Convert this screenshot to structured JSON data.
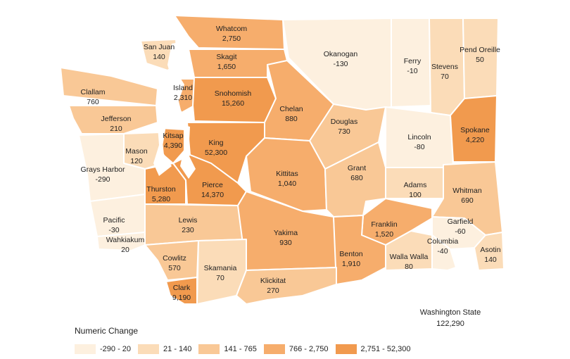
{
  "colors": {
    "class1": "#fdf0df",
    "class2": "#fbdcb8",
    "class3": "#f9c896",
    "class4": "#f6ad6c",
    "class5": "#f19a4e",
    "border": "#ffffff"
  },
  "state": {
    "name": "Washington State",
    "value": "122,290"
  },
  "legend": {
    "title": "Numeric Change",
    "items": [
      {
        "label": "-290 - 20",
        "class": "class1"
      },
      {
        "label": "21 - 140",
        "class": "class2"
      },
      {
        "label": "141 - 765",
        "class": "class3"
      },
      {
        "label": "766 - 2,750",
        "class": "class4"
      },
      {
        "label": "2,751 - 52,300",
        "class": "class5"
      }
    ]
  },
  "counties": [
    {
      "name": "Whatcom",
      "value": "2,750",
      "class": "class4"
    },
    {
      "name": "San Juan",
      "value": "140",
      "class": "class2"
    },
    {
      "name": "Skagit",
      "value": "1,650",
      "class": "class4"
    },
    {
      "name": "Okanogan",
      "value": "-130",
      "class": "class1"
    },
    {
      "name": "Ferry",
      "value": "-10",
      "class": "class1"
    },
    {
      "name": "Stevens",
      "value": "70",
      "class": "class2"
    },
    {
      "name": "Pend Oreille",
      "value": "50",
      "class": "class2"
    },
    {
      "name": "Clallam",
      "value": "760",
      "class": "class3"
    },
    {
      "name": "Island",
      "value": "2,310",
      "class": "class4"
    },
    {
      "name": "Snohomish",
      "value": "15,260",
      "class": "class5"
    },
    {
      "name": "Chelan",
      "value": "880",
      "class": "class4"
    },
    {
      "name": "Douglas",
      "value": "730",
      "class": "class3"
    },
    {
      "name": "Jefferson",
      "value": "210",
      "class": "class3"
    },
    {
      "name": "Lincoln",
      "value": "-80",
      "class": "class1"
    },
    {
      "name": "Spokane",
      "value": "4,220",
      "class": "class5"
    },
    {
      "name": "Kitsap",
      "value": "4,390",
      "class": "class5"
    },
    {
      "name": "Mason",
      "value": "120",
      "class": "class2"
    },
    {
      "name": "King",
      "value": "52,300",
      "class": "class5"
    },
    {
      "name": "Grays Harbor",
      "value": "-290",
      "class": "class1"
    },
    {
      "name": "Kittitas",
      "value": "1,040",
      "class": "class4"
    },
    {
      "name": "Grant",
      "value": "680",
      "class": "class3"
    },
    {
      "name": "Adams",
      "value": "100",
      "class": "class2"
    },
    {
      "name": "Thurston",
      "value": "5,280",
      "class": "class5"
    },
    {
      "name": "Pierce",
      "value": "14,370",
      "class": "class5"
    },
    {
      "name": "Whitman",
      "value": "690",
      "class": "class3"
    },
    {
      "name": "Pacific",
      "value": "-30",
      "class": "class1"
    },
    {
      "name": "Lewis",
      "value": "230",
      "class": "class3"
    },
    {
      "name": "Franklin",
      "value": "1,520",
      "class": "class4"
    },
    {
      "name": "Garfield",
      "value": "-60",
      "class": "class1"
    },
    {
      "name": "Yakima",
      "value": "930",
      "class": "class4"
    },
    {
      "name": "Benton",
      "value": "1,910",
      "class": "class4"
    },
    {
      "name": "Columbia",
      "value": "-40",
      "class": "class1"
    },
    {
      "name": "Wahkiakum",
      "value": "20",
      "class": "class1"
    },
    {
      "name": "Asotin",
      "value": "140",
      "class": "class2"
    },
    {
      "name": "Cowlitz",
      "value": "570",
      "class": "class3"
    },
    {
      "name": "Walla Walla",
      "value": "80",
      "class": "class2"
    },
    {
      "name": "Skamania",
      "value": "70",
      "class": "class2"
    },
    {
      "name": "Klickitat",
      "value": "270",
      "class": "class3"
    },
    {
      "name": "Clark",
      "value": "9,190",
      "class": "class5"
    }
  ]
}
